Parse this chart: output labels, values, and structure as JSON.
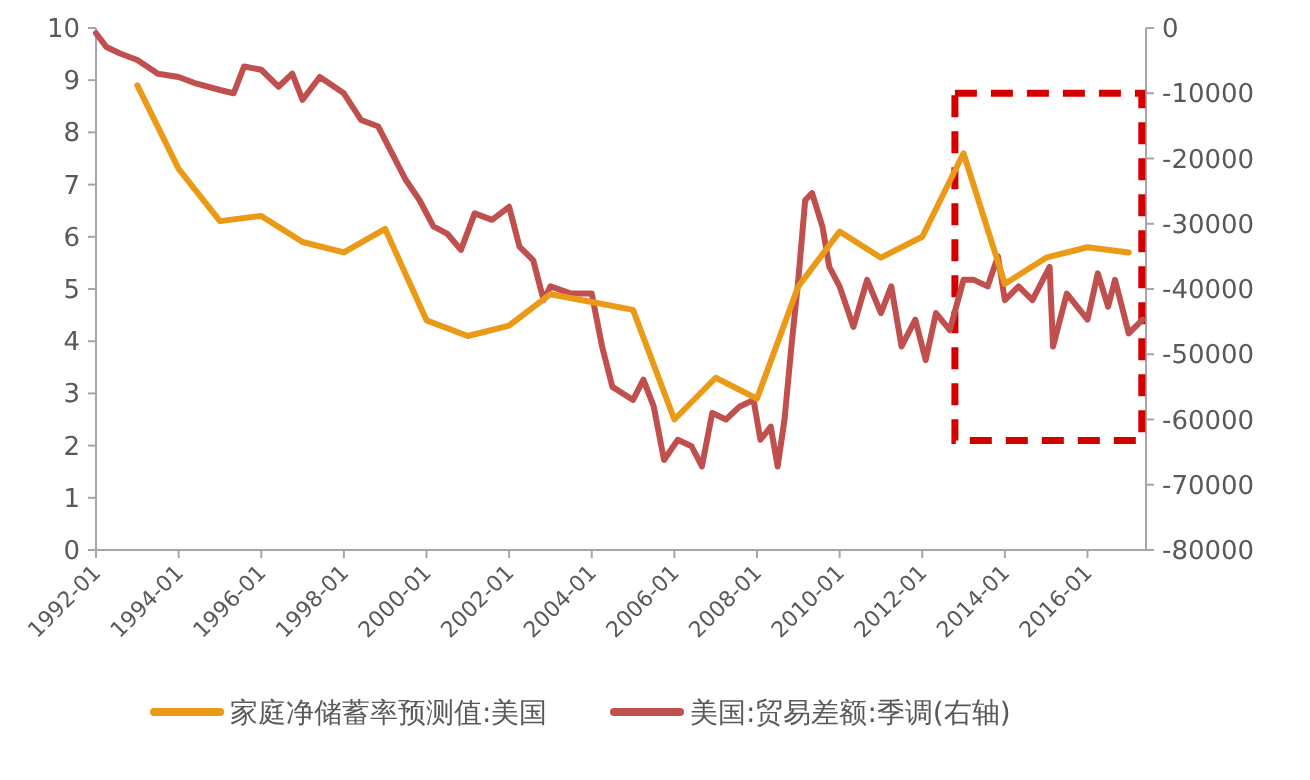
{
  "chart_data": {
    "type": "line",
    "legend": "bottom",
    "xlim": [
      "1992-01",
      "2017-06"
    ],
    "xticks": [
      "1992-01",
      "1994-01",
      "1996-01",
      "1998-01",
      "2000-01",
      "2002-01",
      "2004-01",
      "2006-01",
      "2008-01",
      "2010-01",
      "2012-01",
      "2014-01",
      "2016-01"
    ],
    "ylim": [
      0,
      10
    ],
    "yticks": [
      0,
      1,
      2,
      3,
      4,
      5,
      6,
      7,
      8,
      9,
      10
    ],
    "y2lim": [
      -80000,
      0
    ],
    "y2ticks": [
      -80000,
      -70000,
      -60000,
      -50000,
      -40000,
      -30000,
      -20000,
      -10000,
      0
    ],
    "series": [
      {
        "name": "家庭净储蓄率预测值:美国",
        "color": "#eb9a17",
        "x": [
          "1993-01",
          "1994-01",
          "1995-01",
          "1996-01",
          "1997-01",
          "1998-01",
          "1999-01",
          "2000-01",
          "2001-01",
          "2002-01",
          "2003-01",
          "2004-01",
          "2005-01",
          "2006-01",
          "2007-01",
          "2008-01",
          "2009-01",
          "2010-01",
          "2011-01",
          "2012-01",
          "2013-01",
          "2014-01",
          "2015-01",
          "2016-01",
          "2017-01"
        ],
        "values": [
          8.9,
          7.3,
          6.3,
          6.4,
          5.9,
          5.7,
          6.15,
          4.4,
          4.1,
          4.3,
          4.9,
          4.75,
          4.6,
          2.5,
          3.3,
          2.9,
          5.05,
          6.1,
          5.6,
          6.0,
          7.6,
          5.1,
          5.6,
          5.8,
          5.7
        ]
      },
      {
        "name": "美国:贸易差额:季调(右轴)",
        "color": "#c0504d",
        "axis": "y2",
        "x": [
          "1992-01",
          "1992-04",
          "1992-08",
          "1993-01",
          "1993-07",
          "1994-01",
          "1994-06",
          "1995-01",
          "1995-05",
          "1995-08",
          "1996-01",
          "1996-06",
          "1996-10",
          "1997-01",
          "1997-06",
          "1998-01",
          "1998-06",
          "1998-11",
          "1999-03",
          "1999-07",
          "1999-11",
          "2000-03",
          "2000-07",
          "2000-11",
          "2001-03",
          "2001-08",
          "2002-01",
          "2002-04",
          "2002-08",
          "2002-11",
          "2003-01",
          "2003-07",
          "2004-01",
          "2004-04",
          "2004-07",
          "2005-01",
          "2005-04",
          "2005-07",
          "2005-10",
          "2006-02",
          "2006-06",
          "2006-09",
          "2006-12",
          "2007-04",
          "2007-08",
          "2007-12",
          "2008-02",
          "2008-05",
          "2008-07",
          "2008-09",
          "2008-11",
          "2009-01",
          "2009-03",
          "2009-05",
          "2009-08",
          "2009-10",
          "2010-01",
          "2010-05",
          "2010-09",
          "2011-01",
          "2011-04",
          "2011-07",
          "2011-11",
          "2012-02",
          "2012-05",
          "2012-09",
          "2013-01",
          "2013-04",
          "2013-08",
          "2013-11",
          "2014-01",
          "2014-05",
          "2014-09",
          "2015-02",
          "2015-03",
          "2015-07",
          "2016-01",
          "2016-04",
          "2016-07",
          "2016-09",
          "2017-01",
          "2017-05"
        ],
        "values": [
          -800,
          -2900,
          -3900,
          -4900,
          -7000,
          -7500,
          -8500,
          -9500,
          -10000,
          -5900,
          -6400,
          -9000,
          -7000,
          -11000,
          -7500,
          -10000,
          -14100,
          -15100,
          -19200,
          -23300,
          -26400,
          -30400,
          -31500,
          -34000,
          -28400,
          -29400,
          -27400,
          -33500,
          -35600,
          -41700,
          -39600,
          -40700,
          -40700,
          -48800,
          -55000,
          -57000,
          -53900,
          -58000,
          -66200,
          -63100,
          -64100,
          -67200,
          -59000,
          -60000,
          -58000,
          -57000,
          -63100,
          -61100,
          -67200,
          -60000,
          -48800,
          -38600,
          -26400,
          -25300,
          -30400,
          -36600,
          -39600,
          -45800,
          -38600,
          -43700,
          -39600,
          -48800,
          -44700,
          -50900,
          -43700,
          -46300,
          -38600,
          -38600,
          -39600,
          -35000,
          -41700,
          -39600,
          -41700,
          -36600,
          -48800,
          -40700,
          -44700,
          -37600,
          -42700,
          -38600,
          -46800,
          -44700
        ]
      }
    ]
  }
}
